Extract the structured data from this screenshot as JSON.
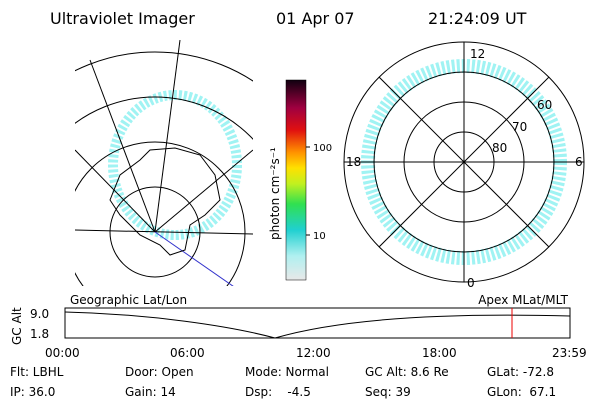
{
  "header": {
    "instrument": "Ultraviolet Imager",
    "date": "01 Apr 07",
    "time": "21:24:09 UT"
  },
  "colorbar": {
    "label": "photon cm⁻²s⁻¹",
    "ticks": [
      "100",
      "10"
    ]
  },
  "polar": {
    "mlt_labels": [
      "12",
      "6",
      "0",
      "18"
    ],
    "lat_labels": [
      "60",
      "70",
      "80"
    ]
  },
  "orbit": {
    "left_label": "Geographic Lat/Lon",
    "right_label": "Apex MLat/MLT",
    "y_axis_label": "GC Alt",
    "y_ticks": [
      "9.0",
      "1.8"
    ],
    "x_ticks": [
      "00:00",
      "06:00",
      "12:00",
      "18:00",
      "23:59"
    ]
  },
  "footer": {
    "rows": [
      [
        "Flt: LBHL",
        "Door: Open",
        "Mode: Normal",
        "GC Alt: 8.6 Re",
        "GLat: -72.8"
      ],
      [
        "IP: 36.0",
        "Gain: 14",
        "Dsp:    -4.5",
        "Seq: 39",
        "GLon:  67.1"
      ]
    ]
  }
}
